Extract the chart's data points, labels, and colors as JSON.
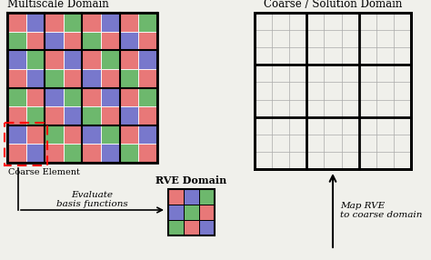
{
  "bg_color": "#f0f0eb",
  "multiscale_title": "Multiscale Domain",
  "coarse_title": "Coarse / Solution Domain",
  "rve_title": "RVE Domain",
  "colors": {
    "red": "#e87878",
    "green": "#6db86d",
    "blue": "#7878cc"
  },
  "multiscale_pattern": [
    [
      "r",
      "b",
      "r",
      "g",
      "r",
      "b",
      "r",
      "g"
    ],
    [
      "g",
      "r",
      "b",
      "r",
      "g",
      "r",
      "b",
      "r"
    ],
    [
      "b",
      "g",
      "r",
      "b",
      "r",
      "g",
      "r",
      "b"
    ],
    [
      "r",
      "b",
      "g",
      "r",
      "b",
      "r",
      "g",
      "r"
    ],
    [
      "g",
      "r",
      "b",
      "g",
      "r",
      "b",
      "r",
      "g"
    ],
    [
      "r",
      "g",
      "r",
      "b",
      "g",
      "r",
      "b",
      "r"
    ],
    [
      "b",
      "r",
      "g",
      "r",
      "b",
      "g",
      "r",
      "b"
    ],
    [
      "r",
      "b",
      "r",
      "g",
      "r",
      "b",
      "g",
      "r"
    ]
  ],
  "rve_pattern": [
    [
      "r",
      "b",
      "g"
    ],
    [
      "b",
      "g",
      "r"
    ],
    [
      "g",
      "r",
      "b"
    ]
  ],
  "label_evaluate": "Evaluate\nbasis functions",
  "label_map": "Map RVE\nto coarse domain",
  "label_coarse_element": "Coarse Element"
}
